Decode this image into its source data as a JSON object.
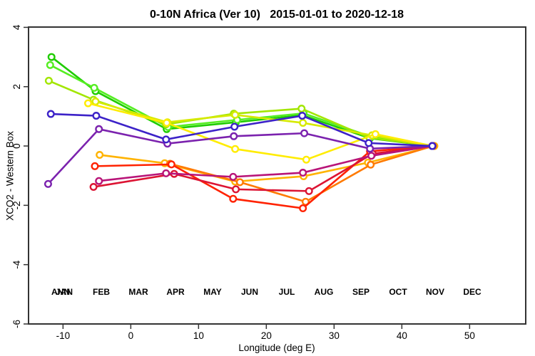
{
  "title": "0-10N Africa (Ver 10)   2015-01-01 to 2020-12-18",
  "chart_data": {
    "type": "line",
    "title": "0-10N Africa (Ver 10)   2015-01-01 to 2020-12-18",
    "xlabel": "Longitude (deg E)",
    "ylabel": "XCO2 - Western Box",
    "xlim": [
      -15.09,
      58.28
    ],
    "ylim": [
      -6.0,
      4.01
    ],
    "xticks": [
      -10,
      0,
      10,
      20,
      30,
      40,
      50
    ],
    "yticks": [
      4,
      2,
      0,
      -2,
      -4,
      -6
    ],
    "grid": false,
    "legend_position": "inside-bottom",
    "legend_overlap_label": "ANN",
    "legend_overlap_color": "#11BB00",
    "months": [
      {
        "label": "JAN",
        "color": "#1FCC00"
      },
      {
        "label": "FEB",
        "color": "#55EE22"
      },
      {
        "label": "MAR",
        "color": "#A2E600"
      },
      {
        "label": "APR",
        "color": "#D6EA00"
      },
      {
        "label": "MAY",
        "color": "#FFEC00"
      },
      {
        "label": "JUN",
        "color": "#FFB300"
      },
      {
        "label": "JUL",
        "color": "#FF7A00"
      },
      {
        "label": "AUG",
        "color": "#FF2200"
      },
      {
        "label": "SEP",
        "color": "#DC1433"
      },
      {
        "label": "OCT",
        "color": "#B81478"
      },
      {
        "label": "NOV",
        "color": "#7B22AE"
      },
      {
        "label": "DEC",
        "color": "#3C22C8"
      }
    ],
    "series": [
      {
        "name": "JAN",
        "color": "#1FCC00",
        "points": [
          [
            -11.7,
            3.0
          ],
          [
            -5.2,
            1.85
          ],
          [
            5.3,
            0.57
          ],
          [
            15.5,
            0.8
          ],
          [
            25.3,
            1.04
          ],
          [
            35.3,
            0.26
          ],
          [
            44.5,
            0.0
          ]
        ]
      },
      {
        "name": "FEB",
        "color": "#55EE22",
        "points": [
          [
            -11.9,
            2.73
          ],
          [
            -5.4,
            1.96
          ],
          [
            5.5,
            0.64
          ],
          [
            15.7,
            0.88
          ],
          [
            25.5,
            1.1
          ],
          [
            35.5,
            0.31
          ],
          [
            44.5,
            0.0
          ]
        ]
      },
      {
        "name": "MAR",
        "color": "#A2E600",
        "points": [
          [
            -12.1,
            2.2
          ],
          [
            -5.5,
            1.56
          ],
          [
            5.2,
            0.73
          ],
          [
            15.2,
            1.09
          ],
          [
            25.2,
            1.26
          ],
          [
            35.2,
            0.28
          ],
          [
            44.5,
            0.0
          ]
        ]
      },
      {
        "name": "APR",
        "color": "#D6EA00",
        "points": [
          [
            -5.2,
            1.5
          ],
          [
            5.4,
            0.8
          ],
          [
            15.4,
            1.05
          ],
          [
            25.4,
            0.78
          ],
          [
            35.6,
            0.36
          ],
          [
            44.5,
            0.0
          ]
        ]
      },
      {
        "name": "MAY",
        "color": "#FFEC00",
        "points": [
          [
            -6.3,
            1.44
          ],
          [
            5.3,
            0.78
          ],
          [
            15.4,
            -0.1
          ],
          [
            25.9,
            -0.46
          ],
          [
            36.1,
            0.4
          ],
          [
            44.5,
            0.0
          ]
        ]
      },
      {
        "name": "JUN",
        "color": "#FFB300",
        "points": [
          [
            -4.6,
            -0.3
          ],
          [
            5.0,
            -0.58
          ],
          [
            15.4,
            -1.2
          ],
          [
            25.5,
            -1.02
          ],
          [
            35.0,
            -0.56
          ],
          [
            44.8,
            0.0
          ]
        ]
      },
      {
        "name": "JUL",
        "color": "#FF7A00",
        "points": [
          [
            5.8,
            -0.6
          ],
          [
            16.1,
            -1.22
          ],
          [
            25.8,
            -1.88
          ],
          [
            35.4,
            -0.63
          ],
          [
            44.6,
            0.0
          ]
        ]
      },
      {
        "name": "AUG",
        "color": "#FF2200",
        "points": [
          [
            -5.3,
            -0.68
          ],
          [
            6.0,
            -0.62
          ],
          [
            15.1,
            -1.78
          ],
          [
            25.4,
            -2.1
          ],
          [
            35.3,
            -0.18
          ],
          [
            44.5,
            0.0
          ]
        ]
      },
      {
        "name": "SEP",
        "color": "#DC1433",
        "points": [
          [
            -5.5,
            -1.38
          ],
          [
            6.4,
            -0.94
          ],
          [
            15.5,
            -1.46
          ],
          [
            26.3,
            -1.52
          ],
          [
            35.7,
            -0.26
          ],
          [
            44.5,
            0.0
          ]
        ]
      },
      {
        "name": "OCT",
        "color": "#B81478",
        "points": [
          [
            -4.7,
            -1.18
          ],
          [
            5.2,
            -0.92
          ],
          [
            15.1,
            -1.04
          ],
          [
            25.4,
            -0.9
          ],
          [
            35.5,
            -0.33
          ],
          [
            44.5,
            0.0
          ]
        ]
      },
      {
        "name": "NOV",
        "color": "#7B22AE",
        "points": [
          [
            -12.2,
            -1.28
          ],
          [
            -4.7,
            0.57
          ],
          [
            5.4,
            0.08
          ],
          [
            15.2,
            0.33
          ],
          [
            25.6,
            0.43
          ],
          [
            35.3,
            -0.09
          ],
          [
            44.5,
            0.0
          ]
        ]
      },
      {
        "name": "DEC",
        "color": "#3C22C8",
        "points": [
          [
            -11.8,
            1.08
          ],
          [
            -5.1,
            1.02
          ],
          [
            5.2,
            0.22
          ],
          [
            15.3,
            0.65
          ],
          [
            25.3,
            1.02
          ],
          [
            35.1,
            0.1
          ],
          [
            44.5,
            0.0
          ]
        ]
      }
    ]
  }
}
